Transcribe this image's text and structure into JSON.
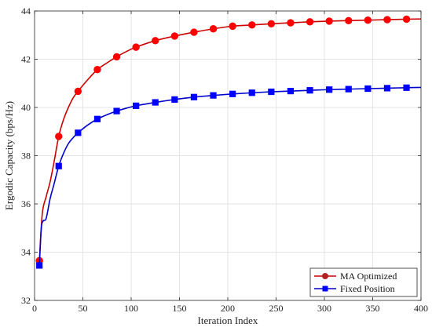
{
  "chart_data": {
    "type": "line",
    "title": "",
    "xlabel": "Iteration Index",
    "ylabel": "Ergodic Capacity (bps/Hz)",
    "xlim": [
      0,
      400
    ],
    "ylim": [
      32,
      44
    ],
    "xticks": [
      0,
      50,
      100,
      150,
      200,
      250,
      300,
      350,
      400
    ],
    "yticks": [
      32,
      34,
      36,
      38,
      40,
      42,
      44
    ],
    "grid": true,
    "legend_position": "bottom-right",
    "series": [
      {
        "name": "MA Optimized",
        "color": "#ff0000",
        "line_color": "#cc0000",
        "marker": "circle",
        "x": [
          5,
          25,
          45,
          65,
          85,
          105,
          125,
          145,
          165,
          185,
          205,
          225,
          245,
          265,
          285,
          305,
          325,
          345,
          365,
          385
        ],
        "values": [
          33.65,
          38.8,
          40.67,
          41.57,
          42.1,
          42.5,
          42.77,
          42.96,
          43.12,
          43.26,
          43.37,
          43.42,
          43.47,
          43.51,
          43.55,
          43.58,
          43.6,
          43.62,
          43.64,
          43.66
        ],
        "curve_x": [
          5,
          8,
          12,
          16,
          20,
          25,
          30,
          35,
          40,
          45,
          55,
          65,
          75,
          85,
          95,
          105,
          125,
          145,
          165,
          185,
          205,
          225,
          245,
          265,
          285,
          305,
          325,
          345,
          365,
          385,
          400
        ],
        "curve_y": [
          33.65,
          35.6,
          36.3,
          36.9,
          37.7,
          38.8,
          39.5,
          40.0,
          40.4,
          40.67,
          41.15,
          41.57,
          41.85,
          42.1,
          42.32,
          42.5,
          42.77,
          42.96,
          43.12,
          43.26,
          43.37,
          43.42,
          43.47,
          43.51,
          43.55,
          43.58,
          43.6,
          43.62,
          43.64,
          43.66,
          43.67
        ]
      },
      {
        "name": "Fixed Position",
        "color": "#0000ff",
        "line_color": "#0000cc",
        "marker": "square",
        "x": [
          5,
          25,
          45,
          65,
          85,
          105,
          125,
          145,
          165,
          185,
          205,
          225,
          245,
          265,
          285,
          305,
          325,
          345,
          365,
          385
        ],
        "values": [
          33.45,
          37.57,
          38.95,
          39.52,
          39.85,
          40.07,
          40.21,
          40.33,
          40.43,
          40.5,
          40.56,
          40.61,
          40.65,
          40.68,
          40.71,
          40.74,
          40.76,
          40.78,
          40.8,
          40.82
        ],
        "curve_x": [
          5,
          7,
          9,
          12,
          16,
          20,
          25,
          30,
          35,
          40,
          45,
          55,
          65,
          75,
          85,
          95,
          105,
          125,
          145,
          165,
          185,
          205,
          225,
          245,
          265,
          285,
          305,
          325,
          345,
          365,
          385,
          400
        ],
        "curve_y": [
          33.45,
          35.0,
          35.3,
          35.4,
          36.2,
          36.8,
          37.57,
          38.1,
          38.5,
          38.75,
          38.95,
          39.27,
          39.52,
          39.7,
          39.85,
          39.97,
          40.07,
          40.21,
          40.33,
          40.43,
          40.5,
          40.56,
          40.61,
          40.65,
          40.68,
          40.71,
          40.74,
          40.76,
          40.78,
          40.8,
          40.82,
          40.83
        ]
      }
    ]
  }
}
